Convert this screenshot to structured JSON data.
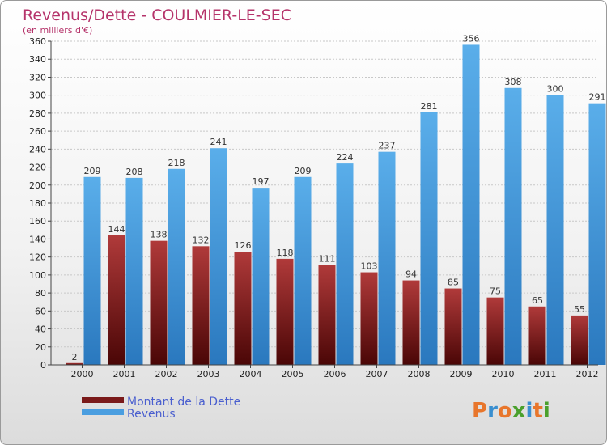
{
  "header": {
    "title": "Revenus/Dette - COULMIER-LE-SEC",
    "subtitle": "(en milliers d'€)"
  },
  "chart_data": {
    "type": "bar",
    "title": "Revenus/Dette - COULMIER-LE-SEC",
    "subtitle": "(en milliers d'€)",
    "xlabel": "",
    "ylabel": "",
    "ylim": [
      0,
      360
    ],
    "ytick_step": 20,
    "grid": "horizontal",
    "categories": [
      "2000",
      "2001",
      "2002",
      "2003",
      "2004",
      "2005",
      "2006",
      "2007",
      "2008",
      "2009",
      "2010",
      "2011",
      "2012"
    ],
    "series": [
      {
        "name": "Montant de la Dette",
        "color": "#7a1a1a",
        "values": [
          2,
          144,
          138,
          132,
          126,
          118,
          111,
          103,
          94,
          85,
          75,
          65,
          55
        ]
      },
      {
        "name": "Revenus",
        "color": "#4a9ee0",
        "values": [
          209,
          208,
          218,
          241,
          197,
          209,
          224,
          237,
          281,
          356,
          308,
          300,
          291
        ]
      }
    ],
    "legend_position": "bottom-left"
  },
  "brand": {
    "letters": [
      "P",
      "r",
      "o",
      "x",
      "i",
      "t",
      "i"
    ],
    "colors": [
      "#e8762c",
      "#3a8fd0",
      "#e8762c",
      "#4aa02c",
      "#3a8fd0",
      "#e8762c",
      "#4aa02c"
    ]
  }
}
